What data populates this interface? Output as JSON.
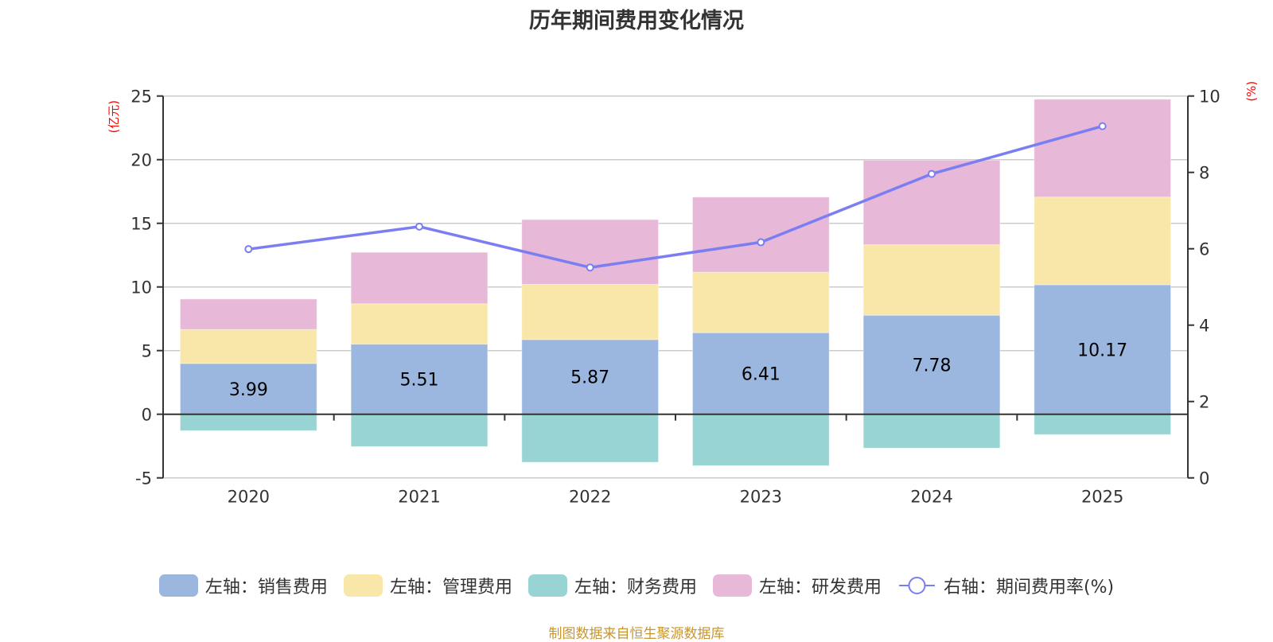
{
  "title": "历年期间费用变化情况",
  "source_note": "制图数据来自恒生聚源数据库",
  "chart_data": {
    "type": "bar",
    "stacked": true,
    "title": "历年期间费用变化情况",
    "categories": [
      "2020",
      "2021",
      "2022",
      "2023",
      "2024",
      "2025"
    ],
    "left_axis": {
      "unit_label": "(亿元)",
      "ylim": [
        -5,
        25
      ],
      "ticks": [
        "-5",
        "0",
        "5",
        "10",
        "15",
        "20",
        "25"
      ]
    },
    "right_axis": {
      "unit_label": "(%)",
      "ylim": [
        0,
        10
      ],
      "ticks": [
        "0",
        "2",
        "4",
        "6",
        "8",
        "10"
      ]
    },
    "grid": true,
    "legend_position": "bottom",
    "series": [
      {
        "name": "左轴：销售费用",
        "axis": "left",
        "type": "bar",
        "color": "#9bb7e0",
        "values": [
          3.99,
          5.51,
          5.87,
          6.41,
          7.78,
          10.17
        ],
        "labels": [
          "3.99",
          "5.51",
          "5.87",
          "6.41",
          "7.78",
          "10.17"
        ]
      },
      {
        "name": "左轴：管理费用",
        "axis": "left",
        "type": "bar",
        "color": "#f8e7a9",
        "values": [
          2.67,
          3.17,
          4.33,
          4.75,
          5.54,
          6.89
        ]
      },
      {
        "name": "左轴：财务费用",
        "axis": "left",
        "type": "bar",
        "color": "#98d4d4",
        "values": [
          -1.29,
          -2.54,
          -3.77,
          -4.04,
          -2.66,
          -1.6
        ]
      },
      {
        "name": "左轴：研发费用",
        "axis": "left",
        "type": "bar",
        "color": "#e7b8d8",
        "values": [
          2.39,
          4.04,
          5.09,
          5.9,
          6.63,
          7.69
        ]
      },
      {
        "name": "右轴：期间费用率(%)",
        "axis": "right",
        "type": "line",
        "color": "#7b7ef2",
        "values": [
          5.99,
          6.58,
          5.51,
          6.17,
          7.96,
          9.21
        ]
      }
    ]
  },
  "colors": {
    "axis": "#333333",
    "grid": "#cccccc",
    "unit": "#ff0000",
    "source": "#c8962e"
  }
}
